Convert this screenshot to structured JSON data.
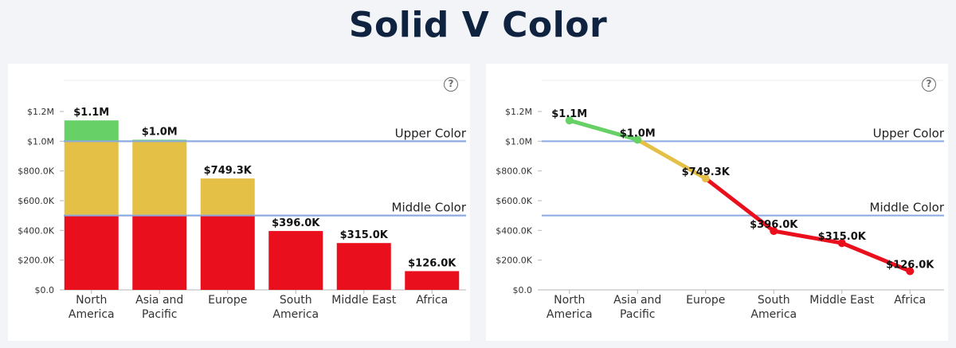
{
  "page": {
    "title": "Solid V Color",
    "help_glyph": "?"
  },
  "colors": {
    "upper": "#67d067",
    "middle": "#e5c047",
    "lower": "#ea0f1d",
    "threshold_line": "#8aa9e0",
    "axis": "#b5b5b5",
    "text": "#333333"
  },
  "chart_data": [
    {
      "type": "bar",
      "categories": [
        [
          "North",
          "America"
        ],
        [
          "Asia and",
          "Pacific"
        ],
        [
          "Europe"
        ],
        [
          "South",
          "America"
        ],
        [
          "Middle East"
        ],
        [
          "Africa"
        ]
      ],
      "values": [
        1140000,
        1010000,
        749300,
        396000,
        315000,
        126000
      ],
      "data_labels": [
        "$1.1M",
        "$1.0M",
        "$749.3K",
        "$396.0K",
        "$315.0K",
        "$126.0K"
      ],
      "y_ticks": [
        0,
        200000,
        400000,
        600000,
        800000,
        1000000,
        1200000
      ],
      "y_tick_labels": [
        "$0.0",
        "$200.0K",
        "$400.0K",
        "$600.0K",
        "$800.0K",
        "$1.0M",
        "$1.2M"
      ],
      "ylim": [
        0,
        1200000
      ],
      "thresholds": [
        {
          "label": "Upper Color",
          "value": 1000000
        },
        {
          "label": "Middle Color",
          "value": 500000
        }
      ],
      "coloring": "stacked bands by threshold"
    },
    {
      "type": "line",
      "categories": [
        [
          "North",
          "America"
        ],
        [
          "Asia and",
          "Pacific"
        ],
        [
          "Europe"
        ],
        [
          "South",
          "America"
        ],
        [
          "Middle East"
        ],
        [
          "Africa"
        ]
      ],
      "values": [
        1140000,
        1010000,
        749300,
        396000,
        315000,
        126000
      ],
      "data_labels": [
        "$1.1M",
        "$1.0M",
        "$749.3K",
        "$396.0K",
        "$315.0K",
        "$126.0K"
      ],
      "y_ticks": [
        0,
        200000,
        400000,
        600000,
        800000,
        1000000,
        1200000
      ],
      "y_tick_labels": [
        "$0.0",
        "$200.0K",
        "$400.0K",
        "$600.0K",
        "$800.0K",
        "$1.0M",
        "$1.2M"
      ],
      "ylim": [
        0,
        1200000
      ],
      "thresholds": [
        {
          "label": "Upper Color",
          "value": 1000000
        },
        {
          "label": "Middle Color",
          "value": 500000
        }
      ],
      "coloring": "segment color by threshold band"
    }
  ]
}
